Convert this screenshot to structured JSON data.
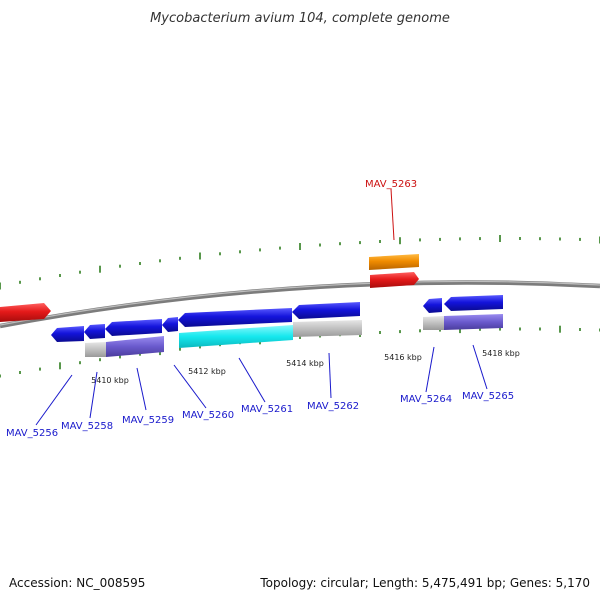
{
  "title": "Mycobacterium avium 104, complete genome",
  "footer": {
    "accession": "Accession: NC_008595",
    "summary": "Topology: circular; Length: 5,475,491 bp; Genes: 5,170"
  },
  "colors": {
    "background": "#ffffff",
    "backbone": "#8c8c8c",
    "tick": "#2e7d1e",
    "label_blue": "#1a1acc",
    "label_red": "#cc1111",
    "gene_red": "#e51a1a",
    "gene_orange": "#f08c00",
    "gene_blue": "#1414dc",
    "cds_cyan": "#16e8ee",
    "cds_gray": "#c0c0c0",
    "cds_purple": "#6a5acd"
  },
  "scale_labels": [
    "5410 kbp",
    "5412 kbp",
    "5414 kbp",
    "5416 kbp",
    "5418 kbp"
  ],
  "gene_labels": [
    {
      "id": "MAV_5256",
      "color": "blue"
    },
    {
      "id": "MAV_5258",
      "color": "blue"
    },
    {
      "id": "MAV_5259",
      "color": "blue"
    },
    {
      "id": "MAV_5260",
      "color": "blue"
    },
    {
      "id": "MAV_5261",
      "color": "blue"
    },
    {
      "id": "MAV_5262",
      "color": "blue"
    },
    {
      "id": "MAV_5263",
      "color": "red"
    },
    {
      "id": "MAV_5264",
      "color": "blue"
    },
    {
      "id": "MAV_5265",
      "color": "blue"
    }
  ]
}
